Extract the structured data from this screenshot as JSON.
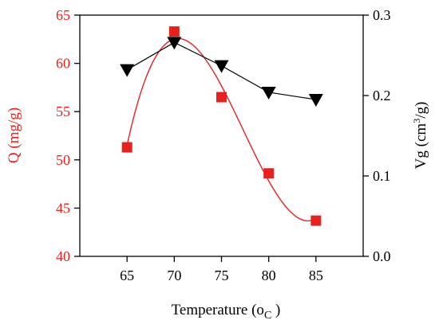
{
  "chart_data": {
    "type": "scatter",
    "x": [
      65,
      70,
      75,
      80,
      85
    ],
    "xlim": [
      60,
      90
    ],
    "xticks": [
      65,
      70,
      75,
      80,
      85
    ],
    "xlabel": {
      "main": "Temperature (o",
      "sub": "C",
      "tail": " )"
    },
    "left_axis": {
      "label": "Q (mg/g)",
      "ylim": [
        40,
        65
      ],
      "ticks": [
        40,
        45,
        50,
        55,
        60,
        65
      ],
      "color": "#e8201e"
    },
    "right_axis": {
      "label": {
        "pre": "Vg (cm",
        "sup": "3",
        "post": "/g)"
      },
      "ylim": [
        0.0,
        0.3
      ],
      "ticks": [
        "0.0",
        "0.1",
        "0.2",
        "0.3"
      ],
      "color": "#000000"
    },
    "series": [
      {
        "axis": "left",
        "marker": "square",
        "color": "#e8201e",
        "values": [
          51.3,
          63.3,
          56.5,
          48.6,
          43.7
        ],
        "fit_curve": true
      },
      {
        "axis": "right",
        "marker": "triangle-down",
        "color": "#000000",
        "values": [
          0.232,
          0.266,
          0.237,
          0.204,
          0.195
        ],
        "connect_line": true
      }
    ],
    "grid": false,
    "legend": "none"
  }
}
